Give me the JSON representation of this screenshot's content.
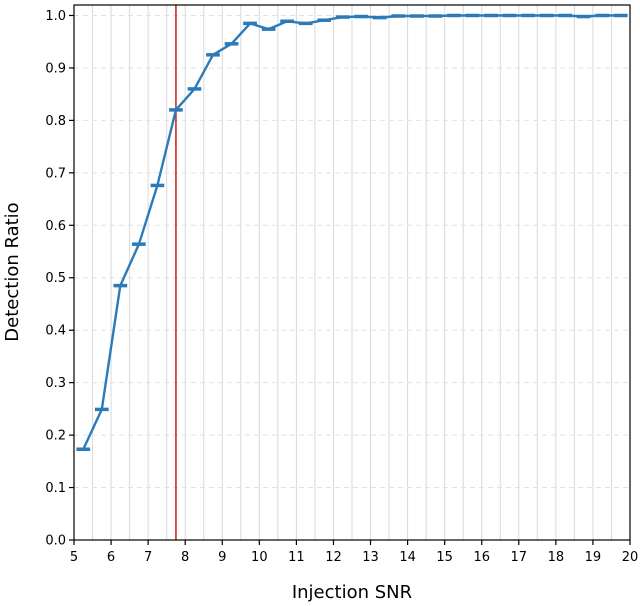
{
  "chart_data": {
    "type": "line",
    "title": "",
    "xlabel": "Injection SNR",
    "ylabel": "Detection Ratio",
    "xlim": [
      5,
      20
    ],
    "ylim": [
      0,
      1.02
    ],
    "xticks": [
      "5",
      "6",
      "7",
      "8",
      "9",
      "10",
      "11",
      "12",
      "13",
      "14",
      "15",
      "16",
      "17",
      "18",
      "19",
      "20"
    ],
    "yticks": [
      "0.0",
      "0.1",
      "0.2",
      "0.3",
      "0.4",
      "0.5",
      "0.6",
      "0.7",
      "0.8",
      "0.9",
      "1.0"
    ],
    "grid": "vertical solid at bin edges, horizontal dashed at y ticks",
    "bin_width": 0.5,
    "series": [
      {
        "color": "#2b7bba",
        "x": [
          5.25,
          5.75,
          6.25,
          6.75,
          7.25,
          7.75,
          8.25,
          8.75,
          9.25,
          9.75,
          10.25,
          10.75,
          11.25,
          11.75,
          12.25,
          12.75,
          13.25,
          13.75,
          14.25,
          14.75,
          15.25,
          15.75,
          16.25,
          16.75,
          17.25,
          17.75,
          18.25,
          18.75,
          19.25,
          19.75
        ],
        "y": [
          0.173,
          0.249,
          0.485,
          0.564,
          0.676,
          0.82,
          0.86,
          0.925,
          0.946,
          0.985,
          0.974,
          0.989,
          0.985,
          0.991,
          0.997,
          0.998,
          0.996,
          0.999,
          0.999,
          0.999,
          1.0,
          1.0,
          1.0,
          1.0,
          1.0,
          1.0,
          1.0,
          0.998,
          1.0,
          1.0
        ]
      }
    ],
    "threshold_line": {
      "x": 7.75,
      "color": "#d62728"
    }
  }
}
